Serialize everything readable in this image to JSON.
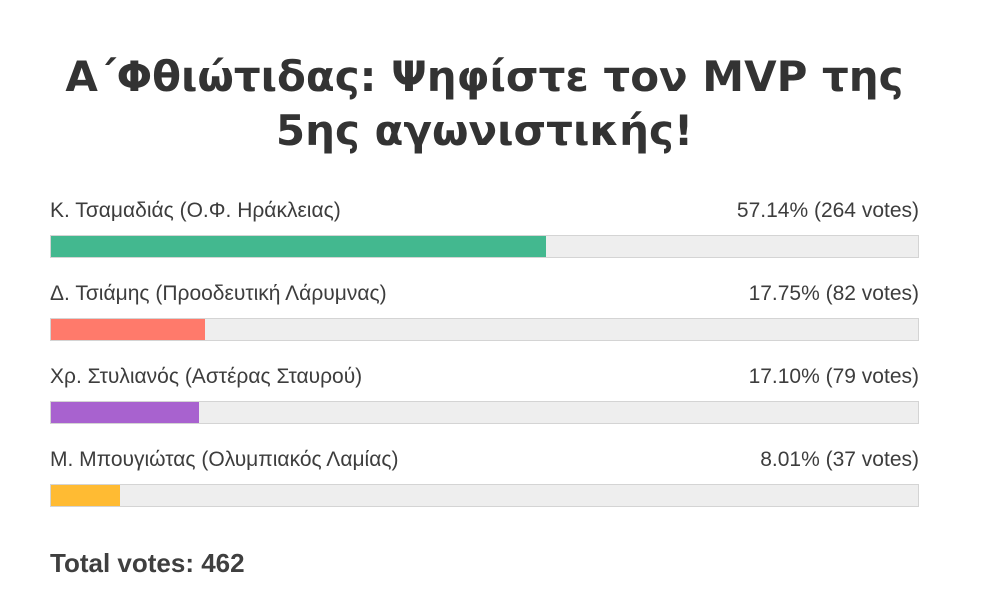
{
  "poll": {
    "title": "Α΄Φθιώτιδας: Ψηφίστε τον MVP της 5ης αγωνιστικής!",
    "answers": [
      {
        "label": "Κ. Τσαμαδιάς (Ο.Φ. Ηράκλειας)",
        "result": "57.14% (264 votes)",
        "percent": 57.14,
        "color": "#43b88f"
      },
      {
        "label": "Δ. Τσιάμης (Προοδευτική Λάρυμνας)",
        "result": "17.75% (82 votes)",
        "percent": 17.75,
        "color": "#ff7a6b"
      },
      {
        "label": "Χρ. Στυλιανός (Αστέρας Σταυρού)",
        "result": "17.10% (79 votes)",
        "percent": 17.1,
        "color": "#a862cf"
      },
      {
        "label": "Μ. Μπουγιώτας (Ολυμπιακός Λαμίας)",
        "result": "8.01% (37 votes)",
        "percent": 8.01,
        "color": "#ffbb33"
      }
    ],
    "total": "Total votes: 462"
  }
}
